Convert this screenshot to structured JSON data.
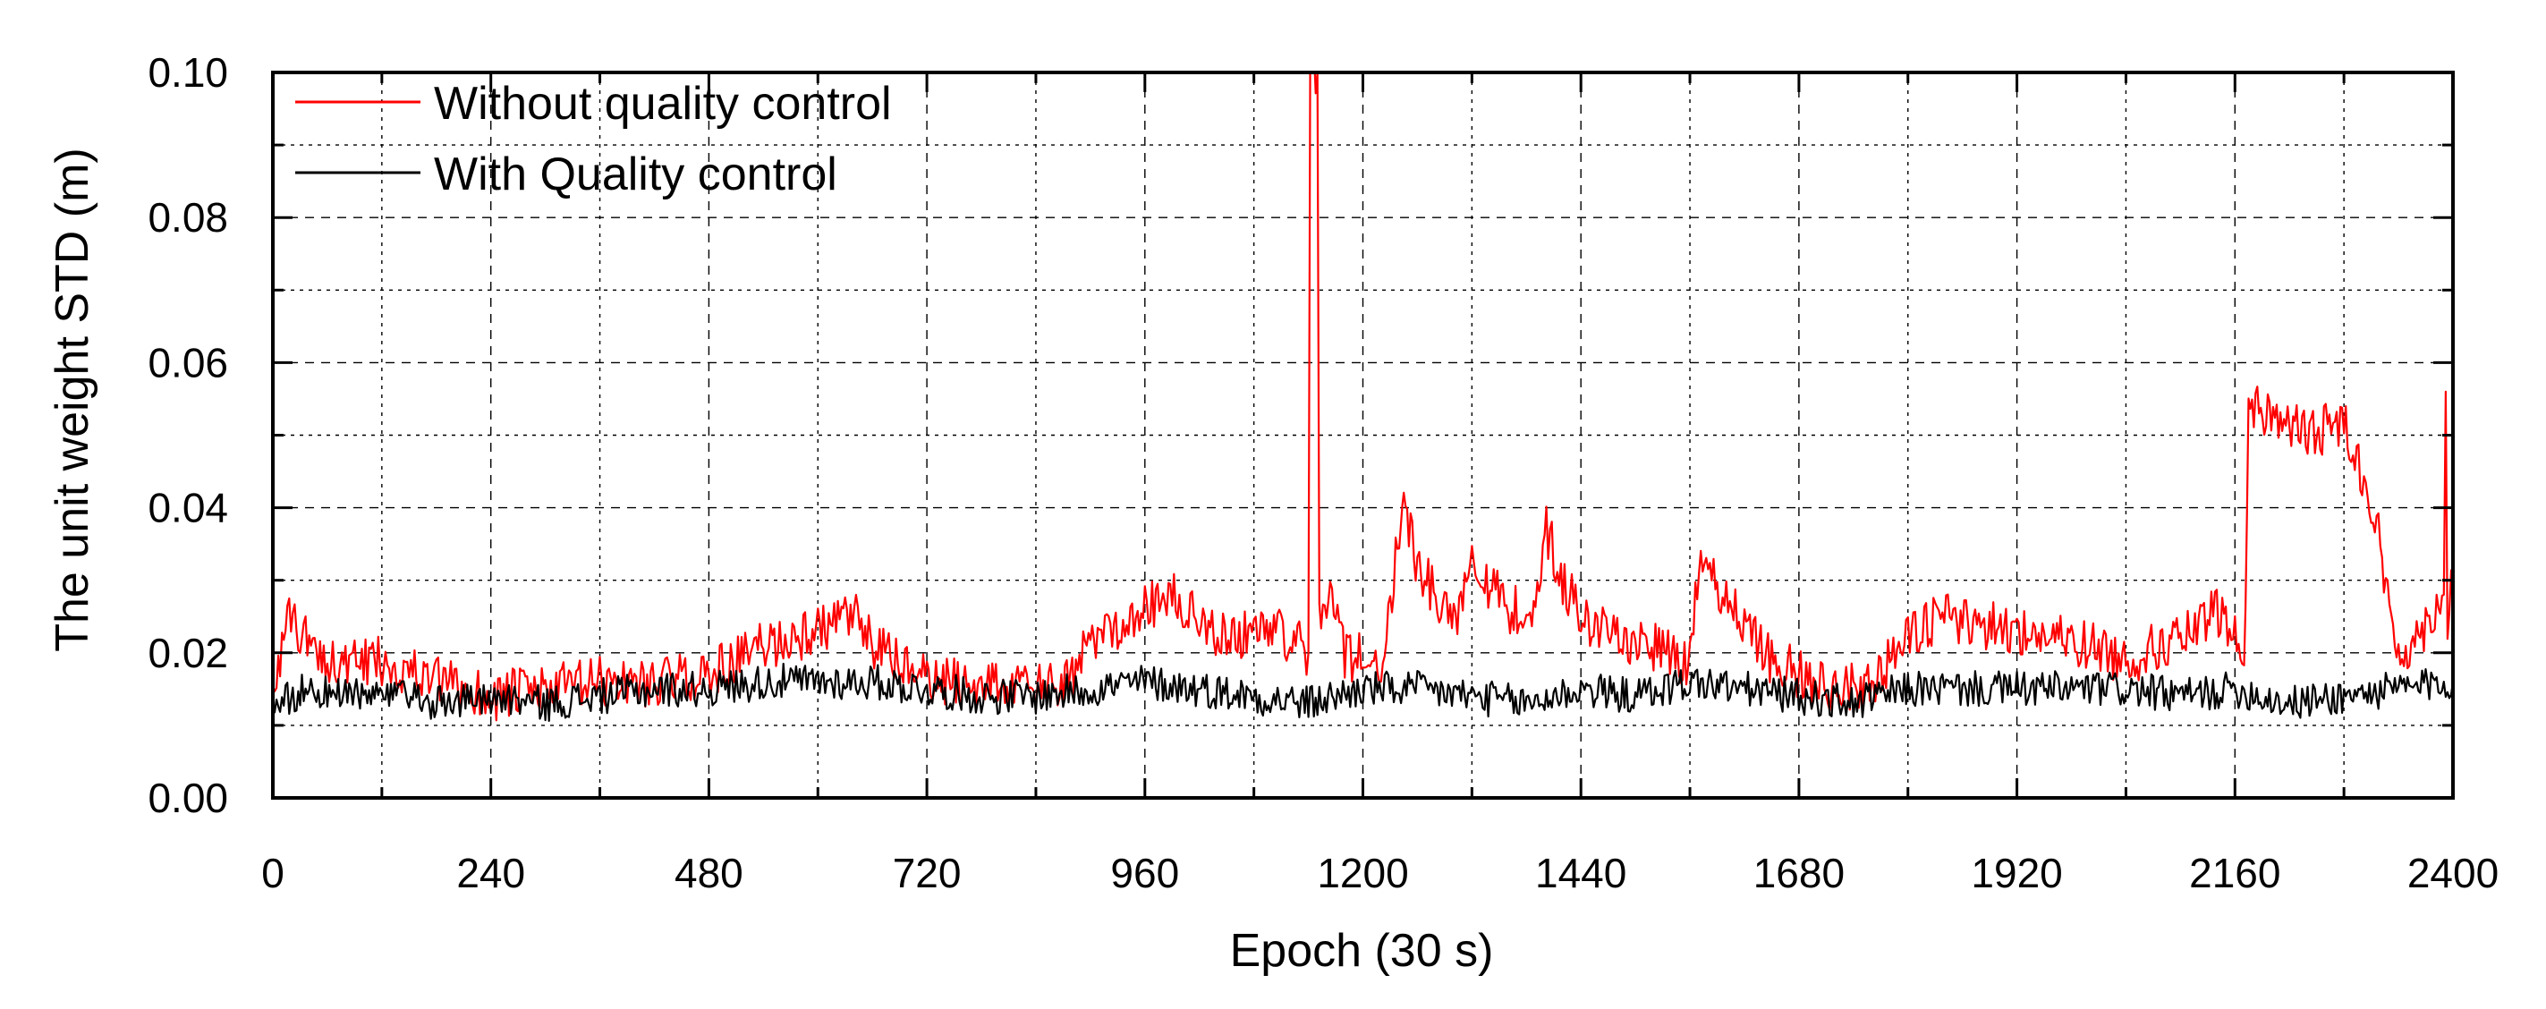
{
  "chart_data": {
    "type": "line",
    "xlabel": "Epoch (30 s)",
    "ylabel": "The unit weight STD (m)",
    "xlim": [
      0,
      2400
    ],
    "ylim": [
      0,
      0.1
    ],
    "x_ticks": [
      0,
      240,
      480,
      720,
      960,
      1200,
      1440,
      1680,
      1920,
      2160,
      2400
    ],
    "x_tick_labels": [
      "0",
      "240",
      "480",
      "720",
      "960",
      "1200",
      "1440",
      "1680",
      "1920",
      "2160",
      "2400"
    ],
    "y_ticks": [
      0,
      0.02,
      0.04,
      0.06,
      0.08,
      0.1
    ],
    "y_tick_labels": [
      "0.00",
      "0.02",
      "0.04",
      "0.06",
      "0.08",
      "0.10"
    ],
    "x_minor_step": 120,
    "y_minor_step": 0.01,
    "grid": true,
    "legend_position": "top-left",
    "series": [
      {
        "name": "Without quality control",
        "color": "#ff0000",
        "x": [
          0,
          20,
          40,
          80,
          120,
          180,
          240,
          300,
          360,
          420,
          480,
          540,
          600,
          640,
          660,
          700,
          720,
          780,
          840,
          880,
          900,
          960,
          990,
          1020,
          1060,
          1100,
          1130,
          1140,
          1142,
          1150,
          1152,
          1160,
          1170,
          1180,
          1200,
          1220,
          1240,
          1245,
          1260,
          1280,
          1300,
          1320,
          1330,
          1360,
          1390,
          1400,
          1420,
          1440,
          1480,
          1520,
          1560,
          1570,
          1600,
          1640,
          1680,
          1720,
          1760,
          1800,
          1840,
          1880,
          1920,
          1960,
          2000,
          2040,
          2080,
          2120,
          2140,
          2160,
          2170,
          2175,
          2200,
          2240,
          2280,
          2300,
          2320,
          2330,
          2340,
          2360,
          2380,
          2390,
          2392,
          2394,
          2400
        ],
        "y": [
          0.016,
          0.025,
          0.021,
          0.018,
          0.019,
          0.016,
          0.014,
          0.015,
          0.016,
          0.016,
          0.017,
          0.021,
          0.023,
          0.025,
          0.021,
          0.018,
          0.016,
          0.016,
          0.015,
          0.016,
          0.022,
          0.026,
          0.028,
          0.024,
          0.022,
          0.024,
          0.021,
          0.02,
          0.1,
          0.1,
          0.025,
          0.027,
          0.028,
          0.019,
          0.02,
          0.018,
          0.036,
          0.041,
          0.032,
          0.028,
          0.024,
          0.034,
          0.031,
          0.026,
          0.025,
          0.038,
          0.03,
          0.025,
          0.022,
          0.021,
          0.018,
          0.032,
          0.028,
          0.02,
          0.017,
          0.015,
          0.016,
          0.022,
          0.025,
          0.024,
          0.023,
          0.022,
          0.021,
          0.019,
          0.021,
          0.023,
          0.026,
          0.022,
          0.017,
          0.054,
          0.053,
          0.05,
          0.052,
          0.045,
          0.035,
          0.025,
          0.02,
          0.022,
          0.026,
          0.028,
          0.056,
          0.025,
          0.031
        ]
      },
      {
        "name": "With Quality control",
        "color": "#000000",
        "x": [
          0,
          40,
          80,
          120,
          180,
          240,
          300,
          360,
          420,
          480,
          540,
          600,
          660,
          720,
          780,
          840,
          900,
          960,
          1020,
          1080,
          1140,
          1200,
          1260,
          1320,
          1380,
          1440,
          1500,
          1560,
          1620,
          1680,
          1740,
          1800,
          1860,
          1920,
          1980,
          2040,
          2100,
          2160,
          2220,
          2280,
          2340,
          2400
        ],
        "y": [
          0.013,
          0.015,
          0.014,
          0.014,
          0.013,
          0.014,
          0.013,
          0.014,
          0.015,
          0.015,
          0.016,
          0.016,
          0.016,
          0.015,
          0.014,
          0.014,
          0.015,
          0.016,
          0.015,
          0.014,
          0.013,
          0.015,
          0.015,
          0.014,
          0.013,
          0.015,
          0.014,
          0.016,
          0.015,
          0.014,
          0.013,
          0.015,
          0.015,
          0.015,
          0.015,
          0.015,
          0.014,
          0.015,
          0.013,
          0.014,
          0.015,
          0.016
        ]
      }
    ]
  }
}
